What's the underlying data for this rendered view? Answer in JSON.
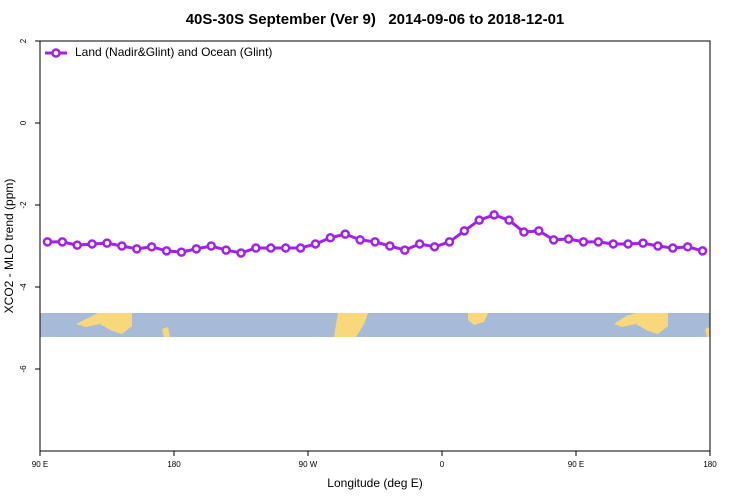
{
  "chart_data": {
    "type": "line",
    "title": "40S-30S September (Ver 9)   2014-09-06 to 2018-12-01",
    "xlabel": "Longitude (deg E)",
    "ylabel": "XCO2 - MLO trend (ppm)",
    "x": [
      95,
      105,
      115,
      125,
      135,
      145,
      155,
      165,
      175,
      185,
      195,
      205,
      215,
      225,
      235,
      245,
      255,
      265,
      275,
      285,
      295,
      305,
      315,
      325,
      335,
      345,
      355,
      365,
      375,
      385,
      395,
      405,
      415,
      425,
      435,
      445,
      455,
      465,
      475,
      485,
      495,
      505,
      515,
      525,
      535
    ],
    "series": [
      {
        "name": "Land (Nadir&Glint) and Ocean (Glint)",
        "color": "#a020f0",
        "values": [
          -2.9,
          -2.9,
          -2.98,
          -2.95,
          -2.93,
          -3.0,
          -3.07,
          -3.02,
          -3.12,
          -3.15,
          -3.07,
          -3.0,
          -3.1,
          -3.17,
          -3.05,
          -3.05,
          -3.05,
          -3.05,
          -2.95,
          -2.8,
          -2.71,
          -2.85,
          -2.9,
          -3.0,
          -3.1,
          -2.95,
          -3.02,
          -2.9,
          -2.63,
          -2.37,
          -2.24,
          -2.37,
          -2.66,
          -2.63,
          -2.85,
          -2.83,
          -2.9,
          -2.9,
          -2.95,
          -2.95,
          -2.93,
          -3.0,
          -3.05,
          -3.02,
          -3.12
        ]
      }
    ],
    "xlim": [
      90,
      540
    ],
    "xticks": [
      {
        "value": 90,
        "label": "90 E"
      },
      180,
      {
        "value": 270,
        "label": "90 W"
      },
      {
        "value": 360,
        "label": "0"
      },
      {
        "value": 450,
        "label": "90 E"
      },
      {
        "value": 540,
        "label": "180"
      }
    ],
    "ylim": [
      -8,
      2
    ],
    "yticks": [
      -6,
      -4,
      -2,
      0,
      2
    ],
    "legend": "top-left"
  }
}
